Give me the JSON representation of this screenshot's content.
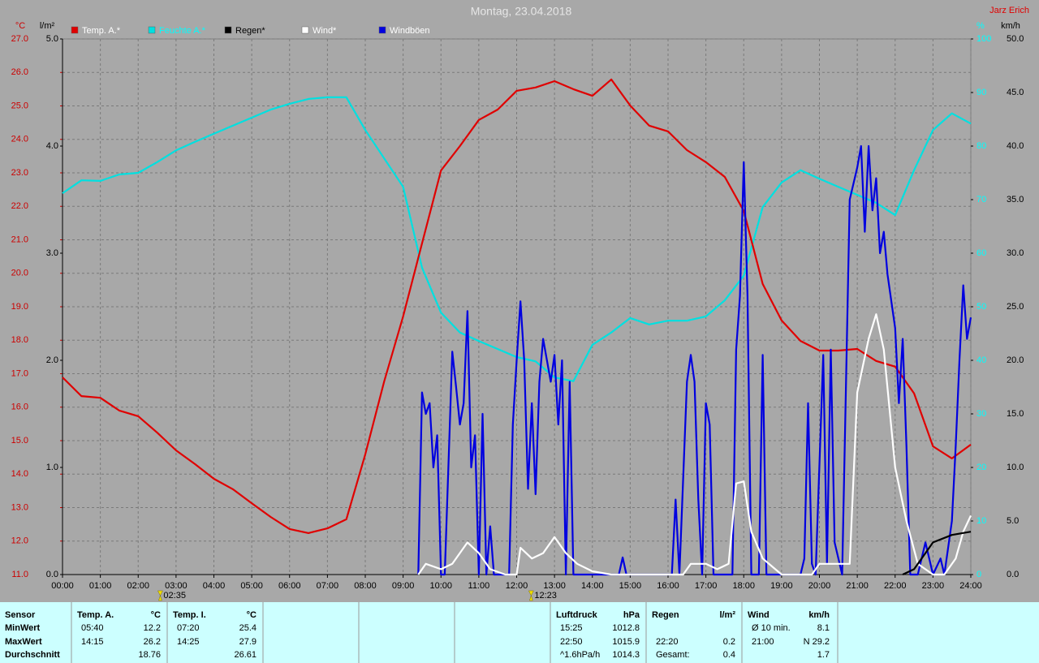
{
  "chart_data": {
    "type": "line",
    "title": "Montag, 23.04.2018",
    "author": "Jarz Erich",
    "xlim": [
      0,
      24
    ],
    "xticks": [
      {
        "value": 0,
        "label": "00:00"
      },
      {
        "value": 1,
        "label": "01:00"
      },
      {
        "value": 2,
        "label": "02:00"
      },
      {
        "value": 3,
        "label": "03:00"
      },
      {
        "value": 4,
        "label": "04:00"
      },
      {
        "value": 5,
        "label": "05:00"
      },
      {
        "value": 6,
        "label": "06:00"
      },
      {
        "value": 7,
        "label": "07:00"
      },
      {
        "value": 8,
        "label": "08:00"
      },
      {
        "value": 9,
        "label": "09:00"
      },
      {
        "value": 10,
        "label": "10:00"
      },
      {
        "value": 11,
        "label": "11:00"
      },
      {
        "value": 12,
        "label": "12:00"
      },
      {
        "value": 13,
        "label": "13:00"
      },
      {
        "value": 14,
        "label": "14:00"
      },
      {
        "value": 15,
        "label": "15:00"
      },
      {
        "value": 16,
        "label": "16:00"
      },
      {
        "value": 17,
        "label": "17:00"
      },
      {
        "value": 18,
        "label": "18:00"
      },
      {
        "value": 19,
        "label": "19:00"
      },
      {
        "value": 20,
        "label": "20:00"
      },
      {
        "value": 21,
        "label": "21:00"
      },
      {
        "value": 22,
        "label": "22:00"
      },
      {
        "value": 23,
        "label": "23:00"
      },
      {
        "value": 24,
        "label": "24:00"
      }
    ],
    "ylabel": "°C",
    "ylim": [
      11,
      27
    ],
    "yticks": [
      {
        "value": 11,
        "label": "11.0"
      },
      {
        "value": 12,
        "label": "12.0"
      },
      {
        "value": 13,
        "label": "13.0"
      },
      {
        "value": 14,
        "label": "14.0"
      },
      {
        "value": 15,
        "label": "15.0"
      },
      {
        "value": 16,
        "label": "16.0"
      },
      {
        "value": 17,
        "label": "17.0"
      },
      {
        "value": 18,
        "label": "18.0"
      },
      {
        "value": 19,
        "label": "19.0"
      },
      {
        "value": 20,
        "label": "20.0"
      },
      {
        "value": 21,
        "label": "21.0"
      },
      {
        "value": 22,
        "label": "22.0"
      },
      {
        "value": 23,
        "label": "23.0"
      },
      {
        "value": 24,
        "label": "24.0"
      },
      {
        "value": 25,
        "label": "25.0"
      },
      {
        "value": 26,
        "label": "26.0"
      },
      {
        "value": 27,
        "label": "27.0"
      }
    ],
    "y2label": "l/m²",
    "y2lim": [
      0,
      5
    ],
    "y2ticks": [
      {
        "value": 0,
        "label": "0.0"
      },
      {
        "value": 1,
        "label": "1.0"
      },
      {
        "value": 2,
        "label": "2.0"
      },
      {
        "value": 3,
        "label": "3.0"
      },
      {
        "value": 4,
        "label": "4.0"
      },
      {
        "value": 5,
        "label": "5.0"
      }
    ],
    "y3label": "%",
    "y3lim": [
      0,
      100
    ],
    "y3ticks": [
      0,
      10,
      20,
      30,
      40,
      50,
      60,
      70,
      80,
      90,
      100
    ],
    "y4label": "km/h",
    "y4lim": [
      0,
      50
    ],
    "y4ticks": [
      {
        "value": 0,
        "label": "0.0"
      },
      {
        "value": 5,
        "label": "5.0"
      },
      {
        "value": 10,
        "label": "10.0"
      },
      {
        "value": 15,
        "label": "15.0"
      },
      {
        "value": 20,
        "label": "20.0"
      },
      {
        "value": 25,
        "label": "25.0"
      },
      {
        "value": 30,
        "label": "30.0"
      },
      {
        "value": 35,
        "label": "35.0"
      },
      {
        "value": 40,
        "label": "40.0"
      },
      {
        "value": 45,
        "label": "45.0"
      },
      {
        "value": 50,
        "label": "50.0"
      }
    ],
    "axis_colors": {
      "y": "#cc0000",
      "y2": "#000000",
      "y3": "#00ffff",
      "y4": "#000000"
    },
    "grid": true,
    "annotations": [
      {
        "value": 2.583,
        "label": "02:35"
      },
      {
        "value": 12.383,
        "label": "12:23"
      }
    ],
    "series": [
      {
        "name": "Temp. A.*",
        "color": "#e00000",
        "legend_text_color": "#ffffff",
        "axis": "y",
        "x": [
          0,
          0.5,
          1,
          1.5,
          2,
          2.5,
          3,
          3.5,
          4,
          4.5,
          5,
          5.5,
          6,
          6.5,
          7,
          7.5,
          8,
          8.5,
          9,
          9.5,
          10,
          10.5,
          11,
          11.5,
          12,
          12.5,
          13,
          13.5,
          14,
          14.5,
          15,
          15.5,
          16,
          16.5,
          17,
          17.5,
          18,
          18.5,
          19,
          19.5,
          20,
          20.5,
          21,
          21.5,
          22,
          22.5,
          23,
          23.5,
          24
        ],
        "values": [
          16.89,
          16.33,
          16.28,
          15.9,
          15.73,
          15.24,
          14.71,
          14.3,
          13.86,
          13.55,
          13.13,
          12.72,
          12.36,
          12.24,
          12.38,
          12.65,
          14.59,
          16.77,
          18.71,
          20.89,
          23.07,
          23.8,
          24.58,
          24.89,
          25.45,
          25.55,
          25.74,
          25.5,
          25.3,
          25.79,
          25.01,
          24.41,
          24.24,
          23.68,
          23.32,
          22.88,
          21.86,
          19.68,
          18.59,
          17.98,
          17.69,
          17.69,
          17.74,
          17.38,
          17.21,
          16.41,
          14.83,
          14.47,
          14.88
        ]
      },
      {
        "name": "Feuchte A.*",
        "color": "#00e0e0",
        "legend_text_color": "#00ffff",
        "axis": "y3",
        "x": [
          0,
          0.5,
          1,
          1.5,
          2,
          2.5,
          3,
          3.5,
          4,
          4.5,
          5,
          5.5,
          6,
          6.5,
          7,
          7.5,
          8,
          8.5,
          9,
          9.5,
          10,
          10.5,
          11,
          11.5,
          12,
          12.5,
          13,
          13.5,
          14,
          14.5,
          15,
          15.5,
          16,
          16.5,
          17,
          17.5,
          18,
          18.5,
          19,
          19.5,
          20,
          20.5,
          21,
          21.5,
          22,
          22.5,
          23,
          23.5,
          24
        ],
        "values": [
          71.2,
          73.6,
          73.5,
          74.7,
          75,
          77,
          79.2,
          80.8,
          82.3,
          83.8,
          85.3,
          86.8,
          87.9,
          88.8,
          89.1,
          89.1,
          83,
          77.7,
          72.4,
          57.3,
          48.9,
          45.2,
          43.6,
          42.1,
          40.6,
          39.8,
          36.8,
          36.1,
          42.9,
          45.2,
          47.9,
          46.7,
          47.4,
          47.4,
          48.2,
          51.2,
          55.8,
          68.6,
          73.2,
          75.5,
          73.9,
          72.4,
          70.9,
          69.4,
          67.1,
          75.5,
          83,
          86.1,
          84.2
        ]
      },
      {
        "name": "Regen*",
        "color": "#000000",
        "legend_text_color": "#000000",
        "axis": "y2",
        "x": [
          22.2,
          22.5,
          22.8,
          23,
          23.5,
          24
        ],
        "values": [
          0,
          0.05,
          0.2,
          0.3,
          0.37,
          0.4
        ]
      },
      {
        "name": "Wind*",
        "color": "#ffffff",
        "legend_text_color": "#ffffff",
        "axis": "y4",
        "x": [
          9.4,
          9.6,
          10,
          10.3,
          10.7,
          11,
          11.3,
          11.7,
          12,
          12.1,
          12.4,
          12.7,
          13,
          13.3,
          13.6,
          14,
          14.5,
          15,
          16.4,
          16.6,
          17,
          17.3,
          17.6,
          17.8,
          18,
          18.2,
          18.5,
          19,
          19.8,
          20,
          20.3,
          20.6,
          20.8,
          21,
          21.3,
          21.5,
          21.7,
          22,
          22.3,
          22.6,
          23,
          23.3,
          23.6,
          23.8,
          24
        ],
        "values": [
          0,
          1,
          0.5,
          1,
          3,
          2,
          0.5,
          0,
          0,
          2.5,
          1.5,
          2,
          3.5,
          2,
          1,
          0.3,
          0,
          0,
          0,
          1,
          1,
          0.5,
          1,
          8.5,
          8.7,
          4,
          1.5,
          0,
          0,
          1,
          1,
          1,
          1,
          17,
          22,
          24.3,
          21,
          10,
          5,
          1,
          0,
          0,
          1.5,
          4,
          5.5
        ]
      },
      {
        "name": "Windböen",
        "color": "#0000e0",
        "legend_text_color": "#ffffff",
        "axis": "y4",
        "x": [
          9.4,
          9.5,
          9.6,
          9.7,
          9.8,
          9.9,
          10,
          10.1,
          10.3,
          10.4,
          10.5,
          10.6,
          10.7,
          10.8,
          10.9,
          11,
          11.1,
          11.2,
          11.3,
          11.4,
          11.8,
          11.9,
          12,
          12.1,
          12.2,
          12.3,
          12.4,
          12.5,
          12.6,
          12.7,
          12.8,
          12.9,
          13,
          13.1,
          13.2,
          13.3,
          13.4,
          13.5,
          14.7,
          14.8,
          14.9,
          16.1,
          16.2,
          16.3,
          16.5,
          16.6,
          16.7,
          16.8,
          16.9,
          17,
          17.1,
          17.2,
          17.7,
          17.8,
          17.9,
          18,
          18.1,
          18.2,
          18.4,
          18.5,
          18.6,
          19.5,
          19.6,
          19.7,
          19.8,
          19.9,
          20.1,
          20.2,
          20.3,
          20.4,
          20.6,
          20.8,
          21,
          21.1,
          21.2,
          21.3,
          21.4,
          21.5,
          21.6,
          21.7,
          21.8,
          22,
          22.1,
          22.2,
          22.3,
          22.4,
          22.6,
          22.8,
          23,
          23.2,
          23.3,
          23.5,
          23.6,
          23.7,
          23.8,
          23.9,
          24
        ],
        "values": [
          0,
          17,
          15,
          16,
          10,
          13,
          0,
          0,
          20.8,
          17.5,
          14,
          16,
          24.6,
          10,
          13,
          0,
          15,
          0,
          4.5,
          0,
          0,
          14,
          20,
          25.5,
          20,
          8,
          16,
          7.5,
          18,
          22,
          20,
          18,
          20.5,
          14,
          20,
          0,
          18,
          0,
          0,
          1.6,
          0,
          0,
          7,
          0,
          18,
          20.5,
          18,
          7,
          0,
          16,
          14,
          0,
          0,
          21,
          26,
          38.5,
          26,
          0,
          0,
          20.5,
          0,
          0,
          1.5,
          16,
          1,
          0,
          20.5,
          1,
          21,
          3,
          0,
          35,
          38,
          40,
          32,
          40,
          34,
          37,
          30,
          32,
          28,
          23,
          16,
          22,
          12,
          0,
          0,
          3,
          0,
          1.5,
          0,
          5,
          12,
          20,
          27,
          22,
          24
        ]
      }
    ]
  },
  "table": {
    "rows": [
      [
        {
          "l": "Sensor"
        },
        {
          "l": "Temp. A.",
          "r": "°C"
        },
        {
          "l": "Temp. I.",
          "r": "°C"
        },
        {
          "l": "Luftdruck",
          "r": "hPa"
        },
        {
          "l": "Regen",
          "r": "l/m²"
        },
        {
          "l": "Wind",
          "r": "km/h"
        }
      ],
      [
        {
          "l": "MinWert"
        },
        {
          "l": "05:40",
          "r": "12.2"
        },
        {
          "l": "07:20",
          "r": "25.4"
        },
        {
          "l": "15:25",
          "r": "1012.8"
        },
        {},
        {
          "l": "Ø 10 min.",
          "r": "8.1"
        }
      ],
      [
        {
          "l": "MaxWert"
        },
        {
          "l": "14:15",
          "r": "26.2"
        },
        {
          "l": "14:25",
          "r": "27.9"
        },
        {
          "l": "22:50",
          "r": "1015.9"
        },
        {
          "l": "22:20",
          "r": "0.2"
        },
        {
          "l": "21:00",
          "r": "N 29.2"
        }
      ],
      [
        {
          "l": "Durchschnitt"
        },
        {
          "r": "18.76"
        },
        {
          "r": "26.61"
        },
        {
          "l": "^1.6hPa/h",
          "r": "1014.3"
        },
        {
          "l": "Gesamt:",
          "r": "0.4"
        },
        {
          "r": "1.7"
        }
      ]
    ]
  }
}
